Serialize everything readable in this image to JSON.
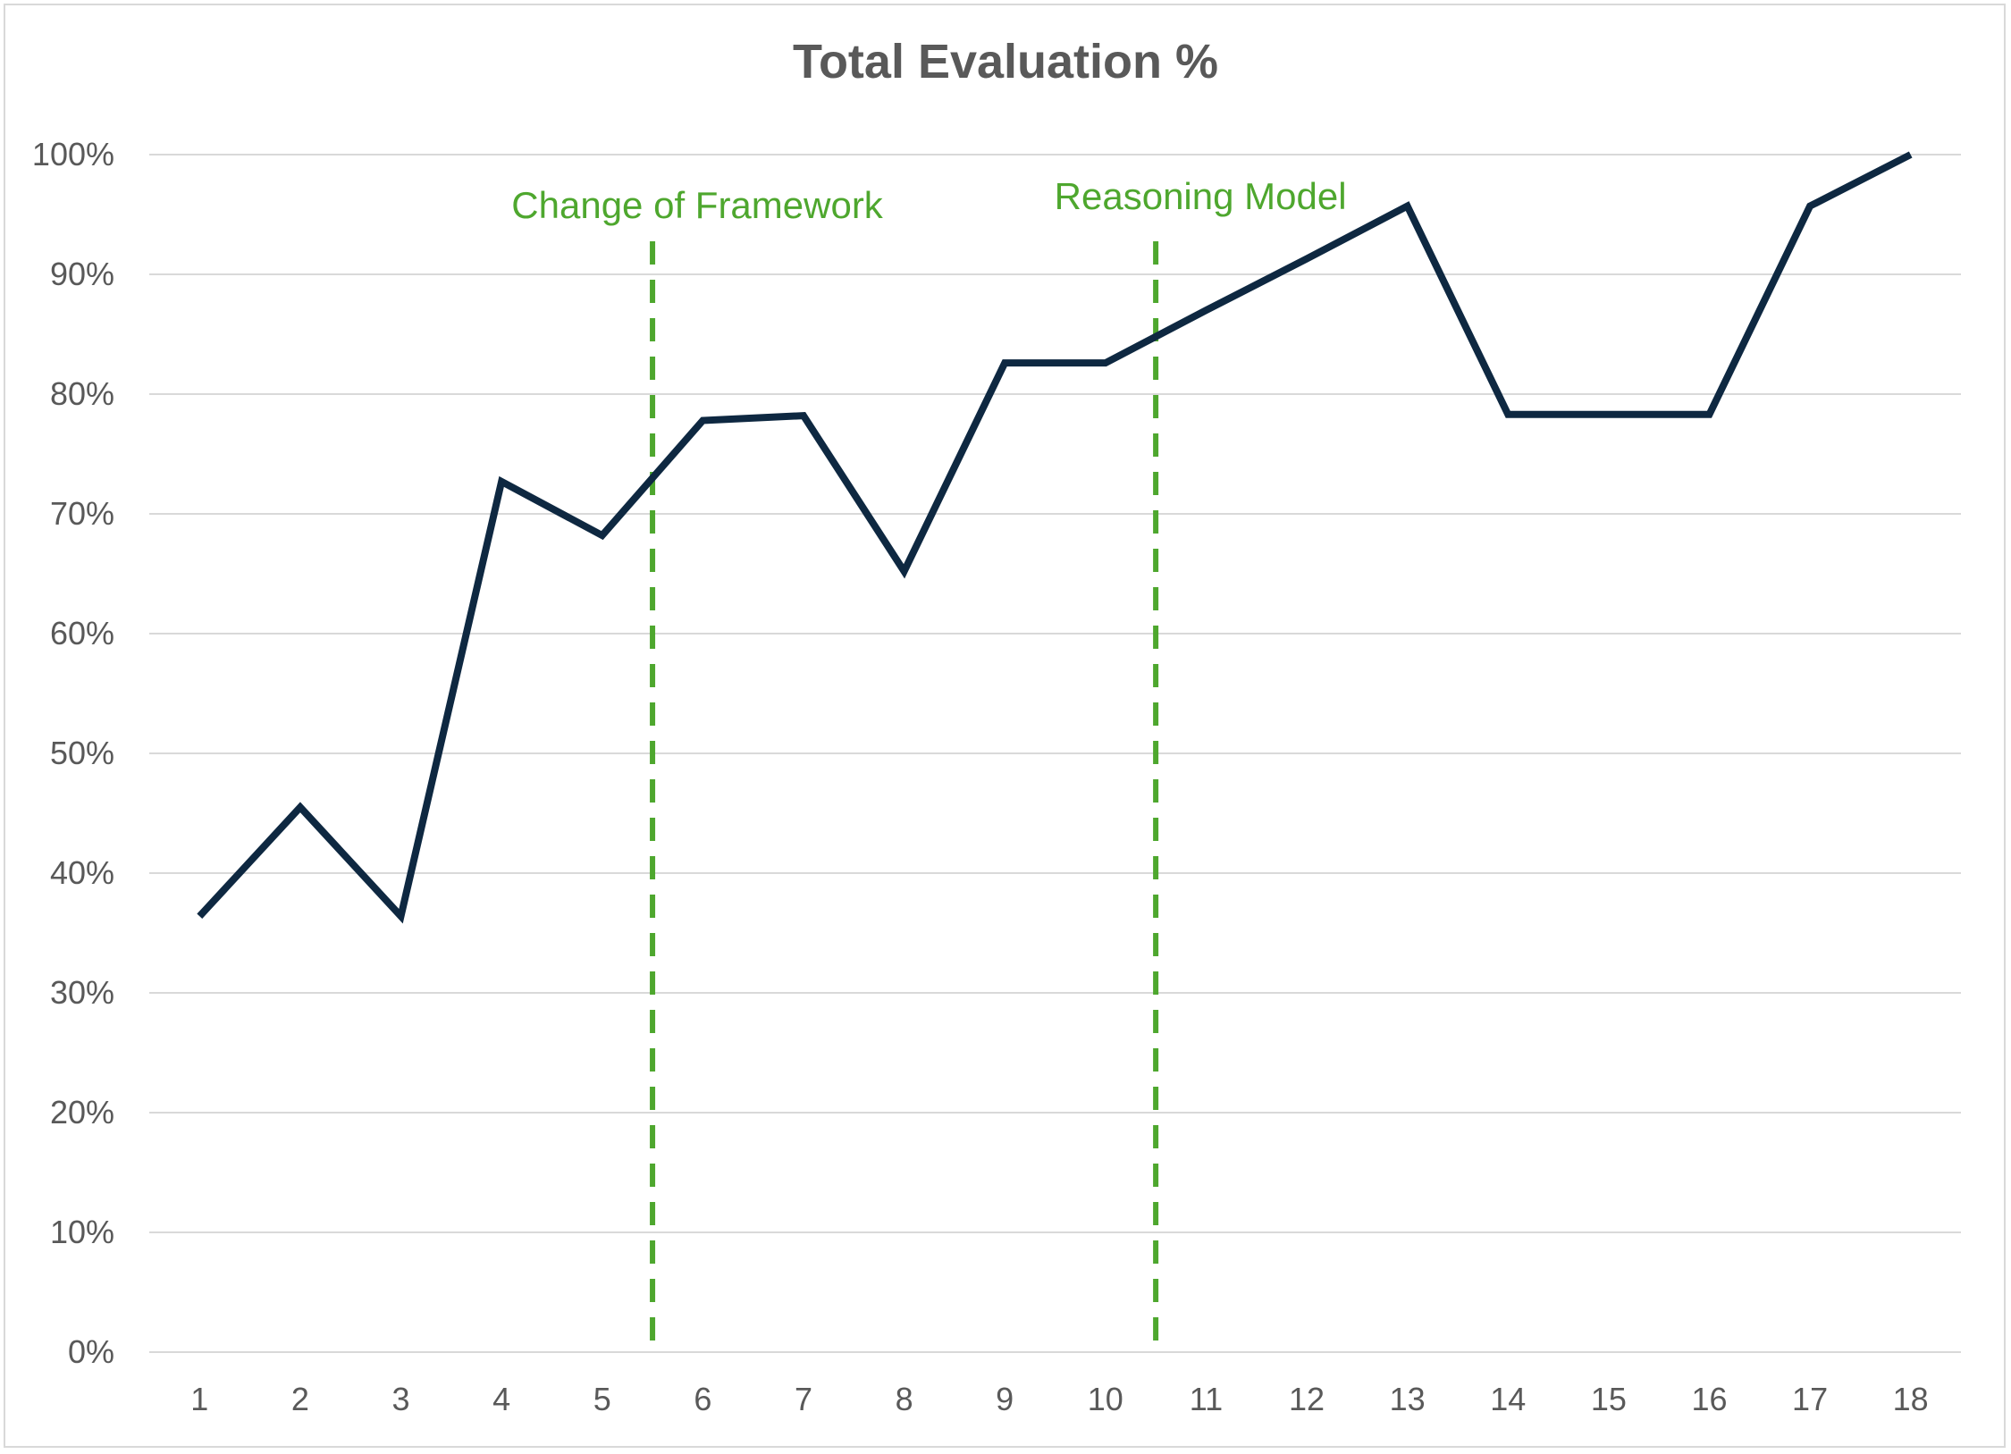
{
  "chart_data": {
    "type": "line",
    "title": "Total Evaluation %",
    "xlabel": "",
    "ylabel": "",
    "categories": [
      "1",
      "2",
      "3",
      "4",
      "5",
      "6",
      "7",
      "8",
      "9",
      "10",
      "11",
      "12",
      "13",
      "14",
      "15",
      "16",
      "17",
      "18"
    ],
    "series": [
      {
        "values": [
          36.4,
          45.5,
          36.4,
          72.7,
          68.2,
          77.8,
          78.2,
          65.2,
          82.6,
          82.6,
          87.0,
          91.3,
          95.7,
          78.3,
          78.3,
          78.3,
          95.7,
          100.0
        ]
      }
    ],
    "ylim": [
      0,
      100
    ],
    "y_ticks": [
      "0%",
      "10%",
      "20%",
      "30%",
      "40%",
      "50%",
      "60%",
      "70%",
      "80%",
      "90%",
      "100%"
    ],
    "y_tick_values": [
      0,
      10,
      20,
      30,
      40,
      50,
      60,
      70,
      80,
      90,
      100
    ],
    "grid": true,
    "annotations": [
      {
        "label": "Change of Framework",
        "x": 5.5
      },
      {
        "label": "Reasoning Model",
        "x": 10.5
      }
    ],
    "colors": {
      "line": "#0e2841",
      "annotation": "#4ea72e",
      "grid": "#d9d9d9",
      "text": "#595959"
    }
  }
}
